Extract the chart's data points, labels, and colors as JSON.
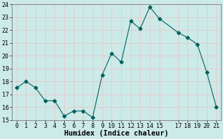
{
  "x": [
    0,
    1,
    2,
    3,
    4,
    5,
    6,
    7,
    8,
    9,
    10,
    11,
    12,
    13,
    14,
    15,
    17,
    18,
    19,
    20,
    21
  ],
  "y": [
    17.5,
    18.0,
    17.5,
    16.5,
    16.5,
    15.3,
    15.7,
    15.7,
    15.2,
    18.5,
    20.2,
    19.5,
    22.7,
    22.1,
    23.8,
    22.9,
    21.8,
    21.4,
    20.9,
    18.7,
    16.0
  ],
  "line_color": "#006060",
  "marker": "D",
  "marker_size": 2.5,
  "bg_color": "#cceae7",
  "grid_color": "#e8c8c8",
  "xlabel": "Humidex (Indice chaleur)",
  "ylim": [
    15,
    24
  ],
  "xlim": [
    -0.5,
    21.5
  ],
  "yticks": [
    15,
    16,
    17,
    18,
    19,
    20,
    21,
    22,
    23,
    24
  ],
  "xticks": [
    0,
    1,
    2,
    3,
    4,
    5,
    6,
    7,
    8,
    9,
    10,
    11,
    12,
    13,
    14,
    15,
    17,
    18,
    19,
    20,
    21
  ],
  "tick_label_fontsize": 6,
  "xlabel_fontsize": 7.5
}
